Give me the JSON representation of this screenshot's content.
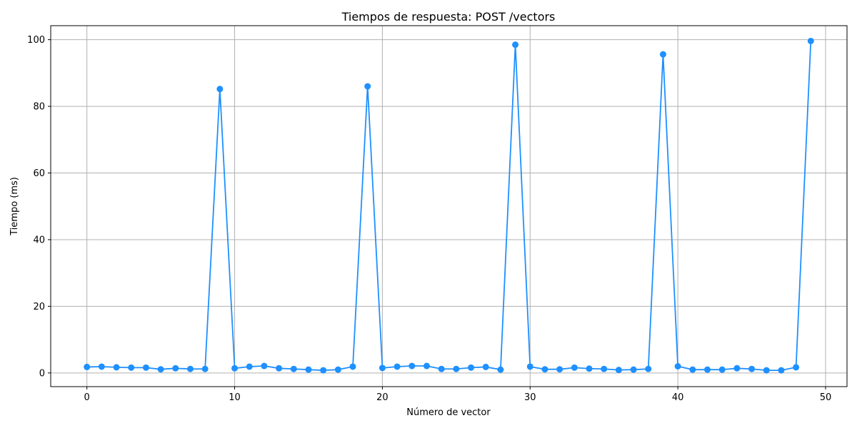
{
  "chart_data": {
    "type": "line",
    "title": "Tiempos de respuesta: POST /vectors",
    "xlabel": "Número de vector",
    "ylabel": "Tiempo (ms)",
    "xlim": [
      -2.45,
      51.45
    ],
    "ylim": [
      -4.1,
      104.2
    ],
    "xticks": [
      0,
      10,
      20,
      30,
      40,
      50
    ],
    "yticks": [
      0,
      20,
      40,
      60,
      80,
      100
    ],
    "grid": true,
    "series": [
      {
        "color": "#1e90ff",
        "marker": "circle",
        "x": [
          0,
          1,
          2,
          3,
          4,
          5,
          6,
          7,
          8,
          9,
          10,
          11,
          12,
          13,
          14,
          15,
          16,
          17,
          18,
          19,
          20,
          21,
          22,
          23,
          24,
          25,
          26,
          27,
          28,
          29,
          30,
          31,
          32,
          33,
          34,
          35,
          36,
          37,
          38,
          39,
          40,
          41,
          42,
          43,
          44,
          45,
          46,
          47,
          48,
          49
        ],
        "y": [
          1.8,
          1.9,
          1.7,
          1.6,
          1.6,
          1.1,
          1.4,
          1.2,
          1.2,
          85.2,
          1.4,
          1.9,
          2.1,
          1.4,
          1.2,
          1.0,
          0.8,
          1.0,
          1.9,
          86.0,
          1.5,
          1.9,
          2.1,
          2.1,
          1.2,
          1.2,
          1.6,
          1.8,
          1.0,
          98.5,
          1.9,
          1.1,
          1.1,
          1.6,
          1.3,
          1.2,
          0.9,
          1.0,
          1.2,
          95.6,
          2.0,
          1.0,
          1.0,
          1.0,
          1.4,
          1.2,
          0.8,
          0.8,
          1.7,
          99.6
        ]
      }
    ]
  }
}
